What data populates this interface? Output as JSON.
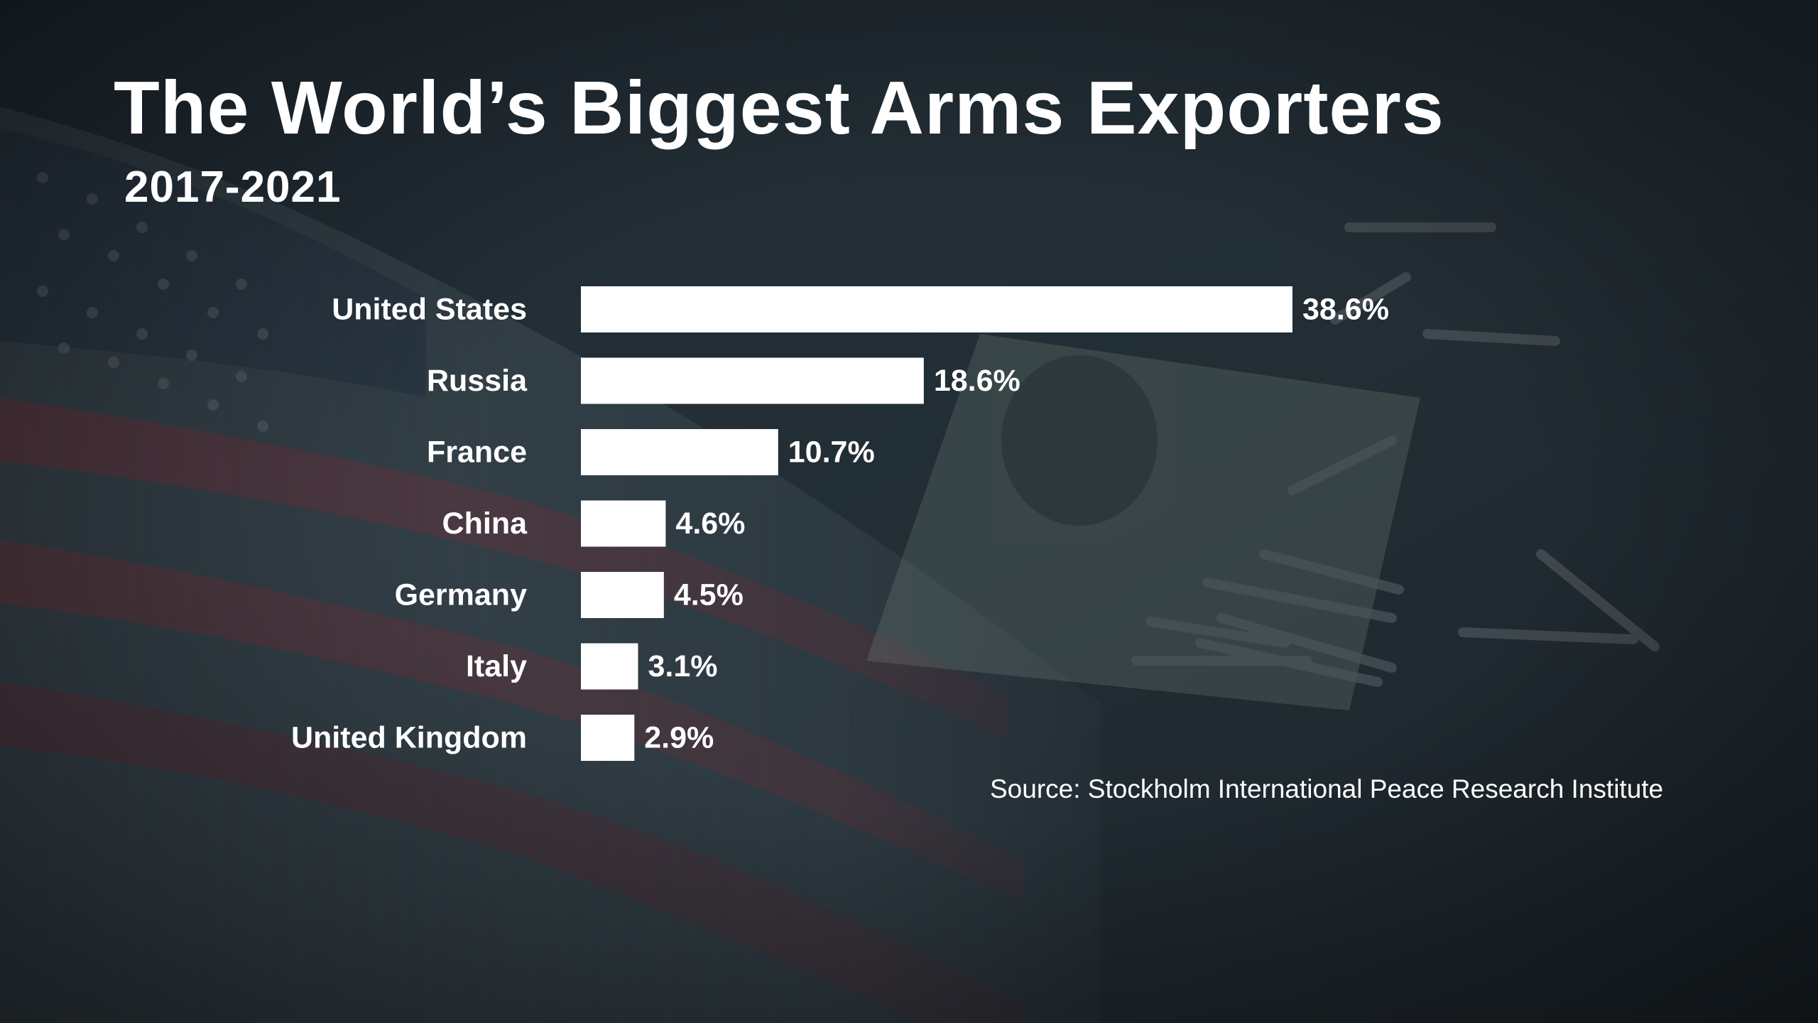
{
  "chart_data": {
    "type": "bar",
    "orientation": "horizontal",
    "title": "The World’s Biggest Arms Exporters",
    "subtitle": "2017-2021",
    "categories": [
      "United States",
      "Russia",
      "France",
      "China",
      "Germany",
      "Italy",
      "United Kingdom"
    ],
    "values": [
      38.6,
      18.6,
      10.7,
      4.6,
      4.5,
      3.1,
      2.9
    ],
    "value_labels": [
      "38.6%",
      "18.6%",
      "10.7%",
      "4.6%",
      "4.5%",
      "3.1%",
      "2.9%"
    ],
    "unit": "%",
    "xlim": [
      0,
      38.6
    ],
    "grid": false,
    "source": "Source: Stockholm International Peace Research Institute",
    "bar_color": "#ffffff",
    "text_color": "#ffffff",
    "background_color": "#1f2a30"
  }
}
